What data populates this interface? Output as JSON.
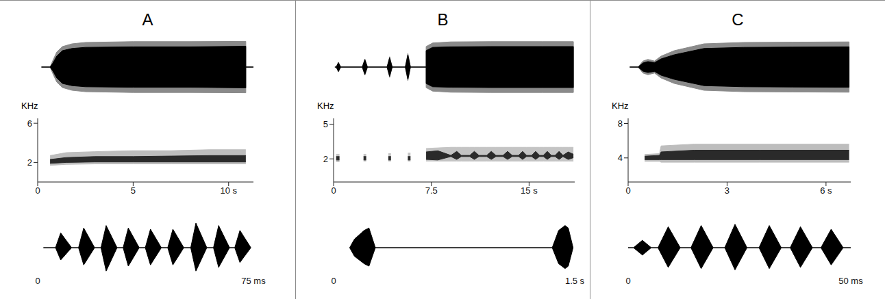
{
  "chart_data": [
    {
      "type": "area",
      "title": "A",
      "tick_labels": false,
      "xlim": [
        0,
        11.3
      ],
      "ylim": [
        -1,
        1
      ],
      "x": [
        0.2,
        0.65,
        0.8,
        1.0,
        1.3,
        1.8,
        2.5,
        5,
        8,
        10.9,
        10.9,
        11.3
      ],
      "series": [
        {
          "color": "#8a8a8a",
          "upper": [
            0,
            0,
            0.25,
            0.55,
            0.75,
            0.85,
            0.9,
            0.93,
            0.93,
            0.94,
            0,
            0
          ],
          "lower": [
            0,
            0,
            -0.25,
            -0.55,
            -0.75,
            -0.85,
            -0.9,
            -0.93,
            -0.93,
            -0.94,
            0,
            0
          ]
        },
        {
          "color": "#000000",
          "upper": [
            0,
            0,
            0.15,
            0.4,
            0.6,
            0.68,
            0.72,
            0.74,
            0.74,
            0.76,
            0,
            0
          ],
          "lower": [
            0,
            0,
            -0.15,
            -0.4,
            -0.6,
            -0.68,
            -0.72,
            -0.74,
            -0.74,
            -0.76,
            0,
            0
          ]
        }
      ]
    },
    {
      "type": "area",
      "y_label": "KHz",
      "xlim": [
        0,
        11.3
      ],
      "ylim": [
        0,
        6.5
      ],
      "xticks": [
        0,
        5,
        {
          "value": 10,
          "label": "10 s"
        }
      ],
      "yticks": [
        2,
        6
      ],
      "x": [
        0.65,
        1.5,
        3,
        5,
        7,
        9,
        10.9
      ],
      "series": [
        {
          "color": "#bdbdbd",
          "lower": [
            1.7,
            1.8,
            1.85,
            1.85,
            1.85,
            1.85,
            1.85
          ],
          "upper": [
            2.7,
            3.0,
            3.1,
            3.2,
            3.2,
            3.3,
            3.3
          ]
        },
        {
          "color": "#2a2a2a",
          "lower": [
            1.9,
            2.0,
            2.05,
            2.05,
            2.05,
            2.05,
            2.05
          ],
          "upper": [
            2.3,
            2.5,
            2.6,
            2.6,
            2.65,
            2.7,
            2.7
          ]
        }
      ]
    },
    {
      "type": "area",
      "tick_labels": "x",
      "xlim": [
        0,
        75
      ],
      "ylim": [
        -1,
        1
      ],
      "xticks": [
        0,
        {
          "value": 75,
          "label": "75 ms"
        }
      ],
      "x": [
        2,
        6.2,
        8,
        11.8,
        14.2,
        16,
        19.8,
        22,
        23.8,
        27.6,
        29.7,
        31.5,
        35.3,
        37.4,
        39.2,
        43,
        45.2,
        47,
        50.8,
        53.2,
        55,
        58.8,
        61.1,
        62.9,
        66.7,
        68.5,
        70.3,
        74.1
      ],
      "series": [
        {
          "color": "#000000",
          "upper": [
            0,
            0,
            0.6,
            0,
            0,
            0.8,
            0,
            0,
            0.9,
            0,
            0,
            0.8,
            0,
            0,
            0.75,
            0,
            0,
            0.75,
            0,
            0,
            1.0,
            0,
            0,
            0.9,
            0,
            0,
            0.7,
            0
          ],
          "lower": [
            0,
            0,
            -0.5,
            0,
            0,
            -0.7,
            0,
            0,
            -0.95,
            0,
            0,
            -0.75,
            0,
            0,
            -0.7,
            0,
            0,
            -0.7,
            0,
            0,
            -0.95,
            0,
            0,
            -0.8,
            0,
            0,
            -0.6,
            0
          ]
        }
      ]
    },
    {
      "type": "area",
      "title": "B",
      "tick_labels": false,
      "xlim": [
        0,
        18.5
      ],
      "ylim": [
        -1,
        1
      ],
      "x": [
        0.1,
        0.2,
        0.37,
        0.55,
        2.2,
        2.4,
        2.6,
        4.1,
        4.3,
        4.5,
        5.5,
        5.7,
        5.9,
        7.1,
        7.1,
        7.6,
        9,
        12,
        16,
        18.4,
        18.4
      ],
      "series": [
        {
          "color": "#8a8a8a",
          "upper": [
            0,
            0,
            0.18,
            0,
            0,
            0.3,
            0,
            0,
            0.38,
            0,
            0,
            0.5,
            0,
            0,
            0.75,
            0.88,
            0.92,
            0.93,
            0.93,
            0.93,
            0
          ],
          "lower": [
            0,
            0,
            -0.18,
            0,
            0,
            -0.3,
            0,
            0,
            -0.38,
            0,
            0,
            -0.5,
            0,
            0,
            -0.75,
            -0.88,
            -0.92,
            -0.93,
            -0.93,
            -0.93,
            0
          ]
        },
        {
          "color": "#000000",
          "upper": [
            0,
            0,
            0.16,
            0,
            0,
            0.27,
            0,
            0,
            0.34,
            0,
            0,
            0.45,
            0,
            0,
            0.6,
            0.72,
            0.74,
            0.75,
            0.75,
            0.75,
            0
          ],
          "lower": [
            0,
            0,
            -0.16,
            0,
            0,
            -0.27,
            0,
            0,
            -0.34,
            0,
            0,
            -0.45,
            0,
            0,
            -0.6,
            -0.72,
            -0.74,
            -0.75,
            -0.75,
            -0.75,
            0
          ]
        }
      ]
    },
    {
      "type": "area",
      "y_label": "KHz",
      "xlim": [
        0,
        18.5
      ],
      "ylim": [
        0,
        5.5
      ],
      "xticks": [
        0,
        7.5,
        {
          "value": 15,
          "label": "15 s"
        }
      ],
      "yticks": [
        2,
        5
      ],
      "x": [
        0.2,
        0.45,
        1.3,
        2.3,
        2.5,
        3.4,
        4.2,
        4.4,
        5.0,
        5.7,
        5.9,
        6.5,
        7.1,
        8.0,
        9.0,
        9.45,
        9.8,
        10.45,
        10.8,
        11.15,
        11.75,
        12.1,
        12.45,
        13.0,
        13.35,
        13.7,
        14.2,
        14.5,
        14.8,
        15.2,
        15.5,
        15.8,
        16.1,
        16.4,
        16.7,
        17.0,
        17.3,
        17.6,
        18.0,
        18.4
      ],
      "series": [
        {
          "color": "#c4c4c4",
          "lower": [
            1.75,
            1.75,
            null,
            1.8,
            1.8,
            null,
            1.8,
            1.8,
            null,
            1.8,
            1.8,
            null,
            1.8,
            1.8,
            1.8,
            1.8,
            1.8,
            1.8,
            1.8,
            1.8,
            1.8,
            1.8,
            1.8,
            1.8,
            1.8,
            1.8,
            1.8,
            1.8,
            1.8,
            1.8,
            1.8,
            1.8,
            1.8,
            1.8,
            1.8,
            1.8,
            1.8,
            1.8,
            1.8,
            1.8
          ],
          "upper": [
            2.4,
            2.4,
            null,
            2.4,
            2.4,
            null,
            2.45,
            2.45,
            null,
            2.5,
            2.5,
            null,
            2.9,
            2.95,
            3.0,
            3.0,
            3.0,
            3.0,
            3.0,
            3.0,
            3.0,
            3.0,
            3.0,
            3.0,
            3.0,
            3.0,
            3.0,
            3.0,
            3.0,
            3.0,
            3.0,
            3.0,
            3.0,
            3.0,
            3.0,
            3.0,
            3.0,
            3.0,
            3.0,
            3.0
          ]
        },
        {
          "color": "#2a2a2a",
          "lower": [
            1.9,
            1.9,
            null,
            1.9,
            1.9,
            null,
            1.9,
            1.9,
            null,
            1.9,
            1.9,
            null,
            1.95,
            1.9,
            2.2,
            1.95,
            2.2,
            2.2,
            1.95,
            2.2,
            2.2,
            1.95,
            2.2,
            2.2,
            1.95,
            2.2,
            2.2,
            1.95,
            2.2,
            2.2,
            1.95,
            2.2,
            2.2,
            1.95,
            2.2,
            2.2,
            1.95,
            2.2,
            1.95,
            2.1
          ],
          "upper": [
            2.2,
            2.2,
            null,
            2.2,
            2.2,
            null,
            2.2,
            2.2,
            null,
            2.2,
            2.2,
            null,
            2.6,
            2.7,
            2.3,
            2.65,
            2.3,
            2.3,
            2.65,
            2.3,
            2.3,
            2.65,
            2.3,
            2.3,
            2.65,
            2.3,
            2.3,
            2.65,
            2.3,
            2.3,
            2.65,
            2.3,
            2.3,
            2.65,
            2.3,
            2.3,
            2.65,
            2.3,
            2.6,
            2.4
          ]
        }
      ]
    },
    {
      "type": "area",
      "tick_labels": "x",
      "xlim": [
        0,
        1.5
      ],
      "ylim": [
        -1,
        1
      ],
      "xticks": [
        0,
        {
          "value": 1.5,
          "label": "1.5 s"
        }
      ],
      "x": [
        0.1,
        0.13,
        0.19,
        0.22,
        0.26,
        1.36,
        1.4,
        1.44,
        1.46,
        1.49
      ],
      "series": [
        {
          "color": "#000000",
          "upper": [
            0,
            0.35,
            0.7,
            0.8,
            0,
            0,
            0.7,
            0.9,
            0.8,
            0
          ],
          "lower": [
            0,
            -0.35,
            -0.65,
            -0.75,
            0,
            0,
            -0.65,
            -0.85,
            -0.75,
            0
          ]
        }
      ]
    },
    {
      "type": "area",
      "title": "C",
      "tick_labels": false,
      "xlim": [
        0,
        6.75
      ],
      "ylim": [
        -1,
        1
      ],
      "x": [
        0.05,
        0.3,
        0.45,
        0.6,
        0.8,
        1.0,
        1.4,
        2.3,
        3.5,
        5,
        6.7,
        6.7
      ],
      "series": [
        {
          "color": "#8a8a8a",
          "upper": [
            0,
            0,
            0.22,
            0.28,
            0.22,
            0.4,
            0.6,
            0.85,
            0.9,
            0.91,
            0.92,
            0
          ],
          "lower": [
            0,
            0,
            -0.22,
            -0.28,
            -0.22,
            -0.4,
            -0.6,
            -0.85,
            -0.9,
            -0.91,
            -0.92,
            0
          ]
        },
        {
          "color": "#000000",
          "upper": [
            0,
            0,
            0.15,
            0.2,
            0.16,
            0.3,
            0.45,
            0.68,
            0.72,
            0.73,
            0.74,
            0
          ],
          "lower": [
            0,
            0,
            -0.15,
            -0.2,
            -0.16,
            -0.3,
            -0.45,
            -0.68,
            -0.72,
            -0.73,
            -0.74,
            0
          ]
        }
      ]
    },
    {
      "type": "area",
      "y_label": "KHz",
      "xlim": [
        0,
        6.75
      ],
      "ylim": [
        1.2,
        8.6
      ],
      "xticks": [
        0,
        3,
        {
          "value": 6,
          "label": "6 s"
        }
      ],
      "yticks": [
        4,
        8
      ],
      "x": [
        0.5,
        0.95,
        1.0,
        2,
        4,
        6.7
      ],
      "series": [
        {
          "color": "#bdbdbd",
          "lower": [
            3.6,
            3.6,
            3.5,
            3.5,
            3.5,
            3.5
          ],
          "upper": [
            4.4,
            4.5,
            5.4,
            5.6,
            5.6,
            5.6
          ]
        },
        {
          "color": "#2a2a2a",
          "lower": [
            3.8,
            3.8,
            3.8,
            3.8,
            3.8,
            3.8
          ],
          "upper": [
            4.2,
            4.3,
            4.7,
            4.9,
            4.9,
            4.9
          ]
        }
      ]
    },
    {
      "type": "area",
      "tick_labels": "x",
      "xlim": [
        0,
        50
      ],
      "ylim": [
        -1,
        1
      ],
      "xticks": [
        0,
        {
          "value": 50,
          "label": "50 ms"
        }
      ],
      "x": [
        0,
        1.2,
        3.2,
        5.2,
        6.7,
        9.0,
        11.7,
        14.1,
        16.4,
        19.1,
        21.7,
        24.0,
        26.7,
        29.4,
        31.7,
        34.4,
        36.4,
        38.7,
        41.4,
        43.3,
        45.6,
        48.3,
        50
      ],
      "series": [
        {
          "color": "#000000",
          "upper": [
            0,
            0,
            0.3,
            0,
            0,
            0.85,
            0,
            0,
            0.9,
            0,
            0,
            0.95,
            0,
            0,
            0.9,
            0,
            0,
            0.85,
            0,
            0,
            0.75,
            0,
            0
          ],
          "lower": [
            0,
            0,
            -0.3,
            0,
            0,
            -0.8,
            0,
            0,
            -0.85,
            0,
            0,
            -0.9,
            0,
            0,
            -0.85,
            0,
            0,
            -0.8,
            0,
            0,
            -0.7,
            0,
            0
          ]
        }
      ]
    }
  ]
}
